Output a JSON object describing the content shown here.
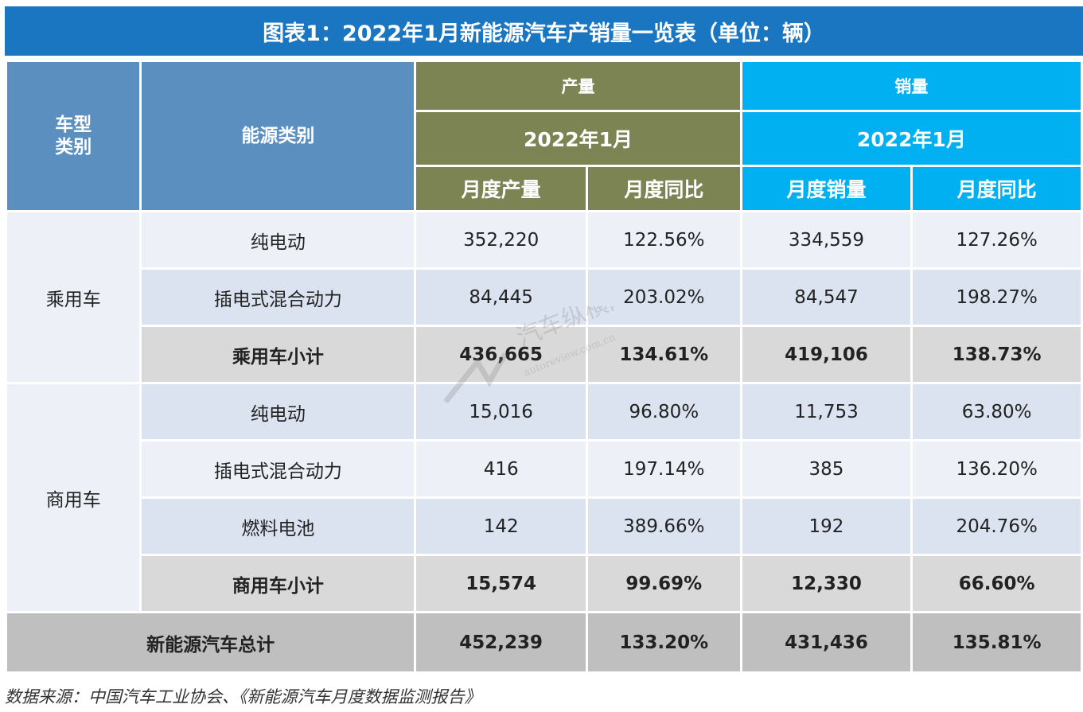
{
  "title": "图表1：2022年1月新能源汽车产销量一览表（单位：辆）",
  "header": {
    "vehicle_type": "车型\n类别",
    "vehicle_type_l1": "车型",
    "vehicle_type_l2": "类别",
    "energy_type": "能源类别",
    "production": "产量",
    "sales": "销量",
    "production_period": "2022年1月",
    "sales_period": "2022年1月",
    "monthly_production": "月度产量",
    "monthly_yoy_prod": "月度同比",
    "monthly_sales": "月度销量",
    "monthly_yoy_sales": "月度同比"
  },
  "groups": [
    {
      "type": "乘用车",
      "rows": [
        {
          "energy": "纯电动",
          "prod": "352,220",
          "prod_yoy": "122.56%",
          "sales": "334,559",
          "sales_yoy": "127.26%"
        },
        {
          "energy": "插电式混合动力",
          "prod": "84,445",
          "prod_yoy": "203.02%",
          "sales": "84,547",
          "sales_yoy": "198.27%"
        },
        {
          "energy": "乘用车小计",
          "prod": "436,665",
          "prod_yoy": "134.61%",
          "sales": "419,106",
          "sales_yoy": "138.73%"
        }
      ]
    },
    {
      "type": "商用车",
      "rows": [
        {
          "energy": "纯电动",
          "prod": "15,016",
          "prod_yoy": "96.80%",
          "sales": "11,753",
          "sales_yoy": "63.80%"
        },
        {
          "energy": "插电式混合动力",
          "prod": "416",
          "prod_yoy": "197.14%",
          "sales": "385",
          "sales_yoy": "136.20%"
        },
        {
          "energy": "燃料电池",
          "prod": "142",
          "prod_yoy": "389.66%",
          "sales": "192",
          "sales_yoy": "204.76%"
        },
        {
          "energy": "商用车小计",
          "prod": "15,574",
          "prod_yoy": "99.69%",
          "sales": "12,330",
          "sales_yoy": "66.60%"
        }
      ]
    }
  ],
  "total": {
    "label": "新能源汽车总计",
    "prod": "452,239",
    "prod_yoy": "133.20%",
    "sales": "431,436",
    "sales_yoy": "135.81%"
  },
  "watermark": {
    "text": "汽车纵横网",
    "url": "autoreview.com.cn"
  },
  "source": "数据来源：中国汽车工业协会、《新能源汽车月度数据监测报告》",
  "colors": {
    "title_bg": "#1b76c2",
    "type_header": "#5a8fc0",
    "production_header": "#7d8453",
    "sales_header": "#00b0f0"
  }
}
